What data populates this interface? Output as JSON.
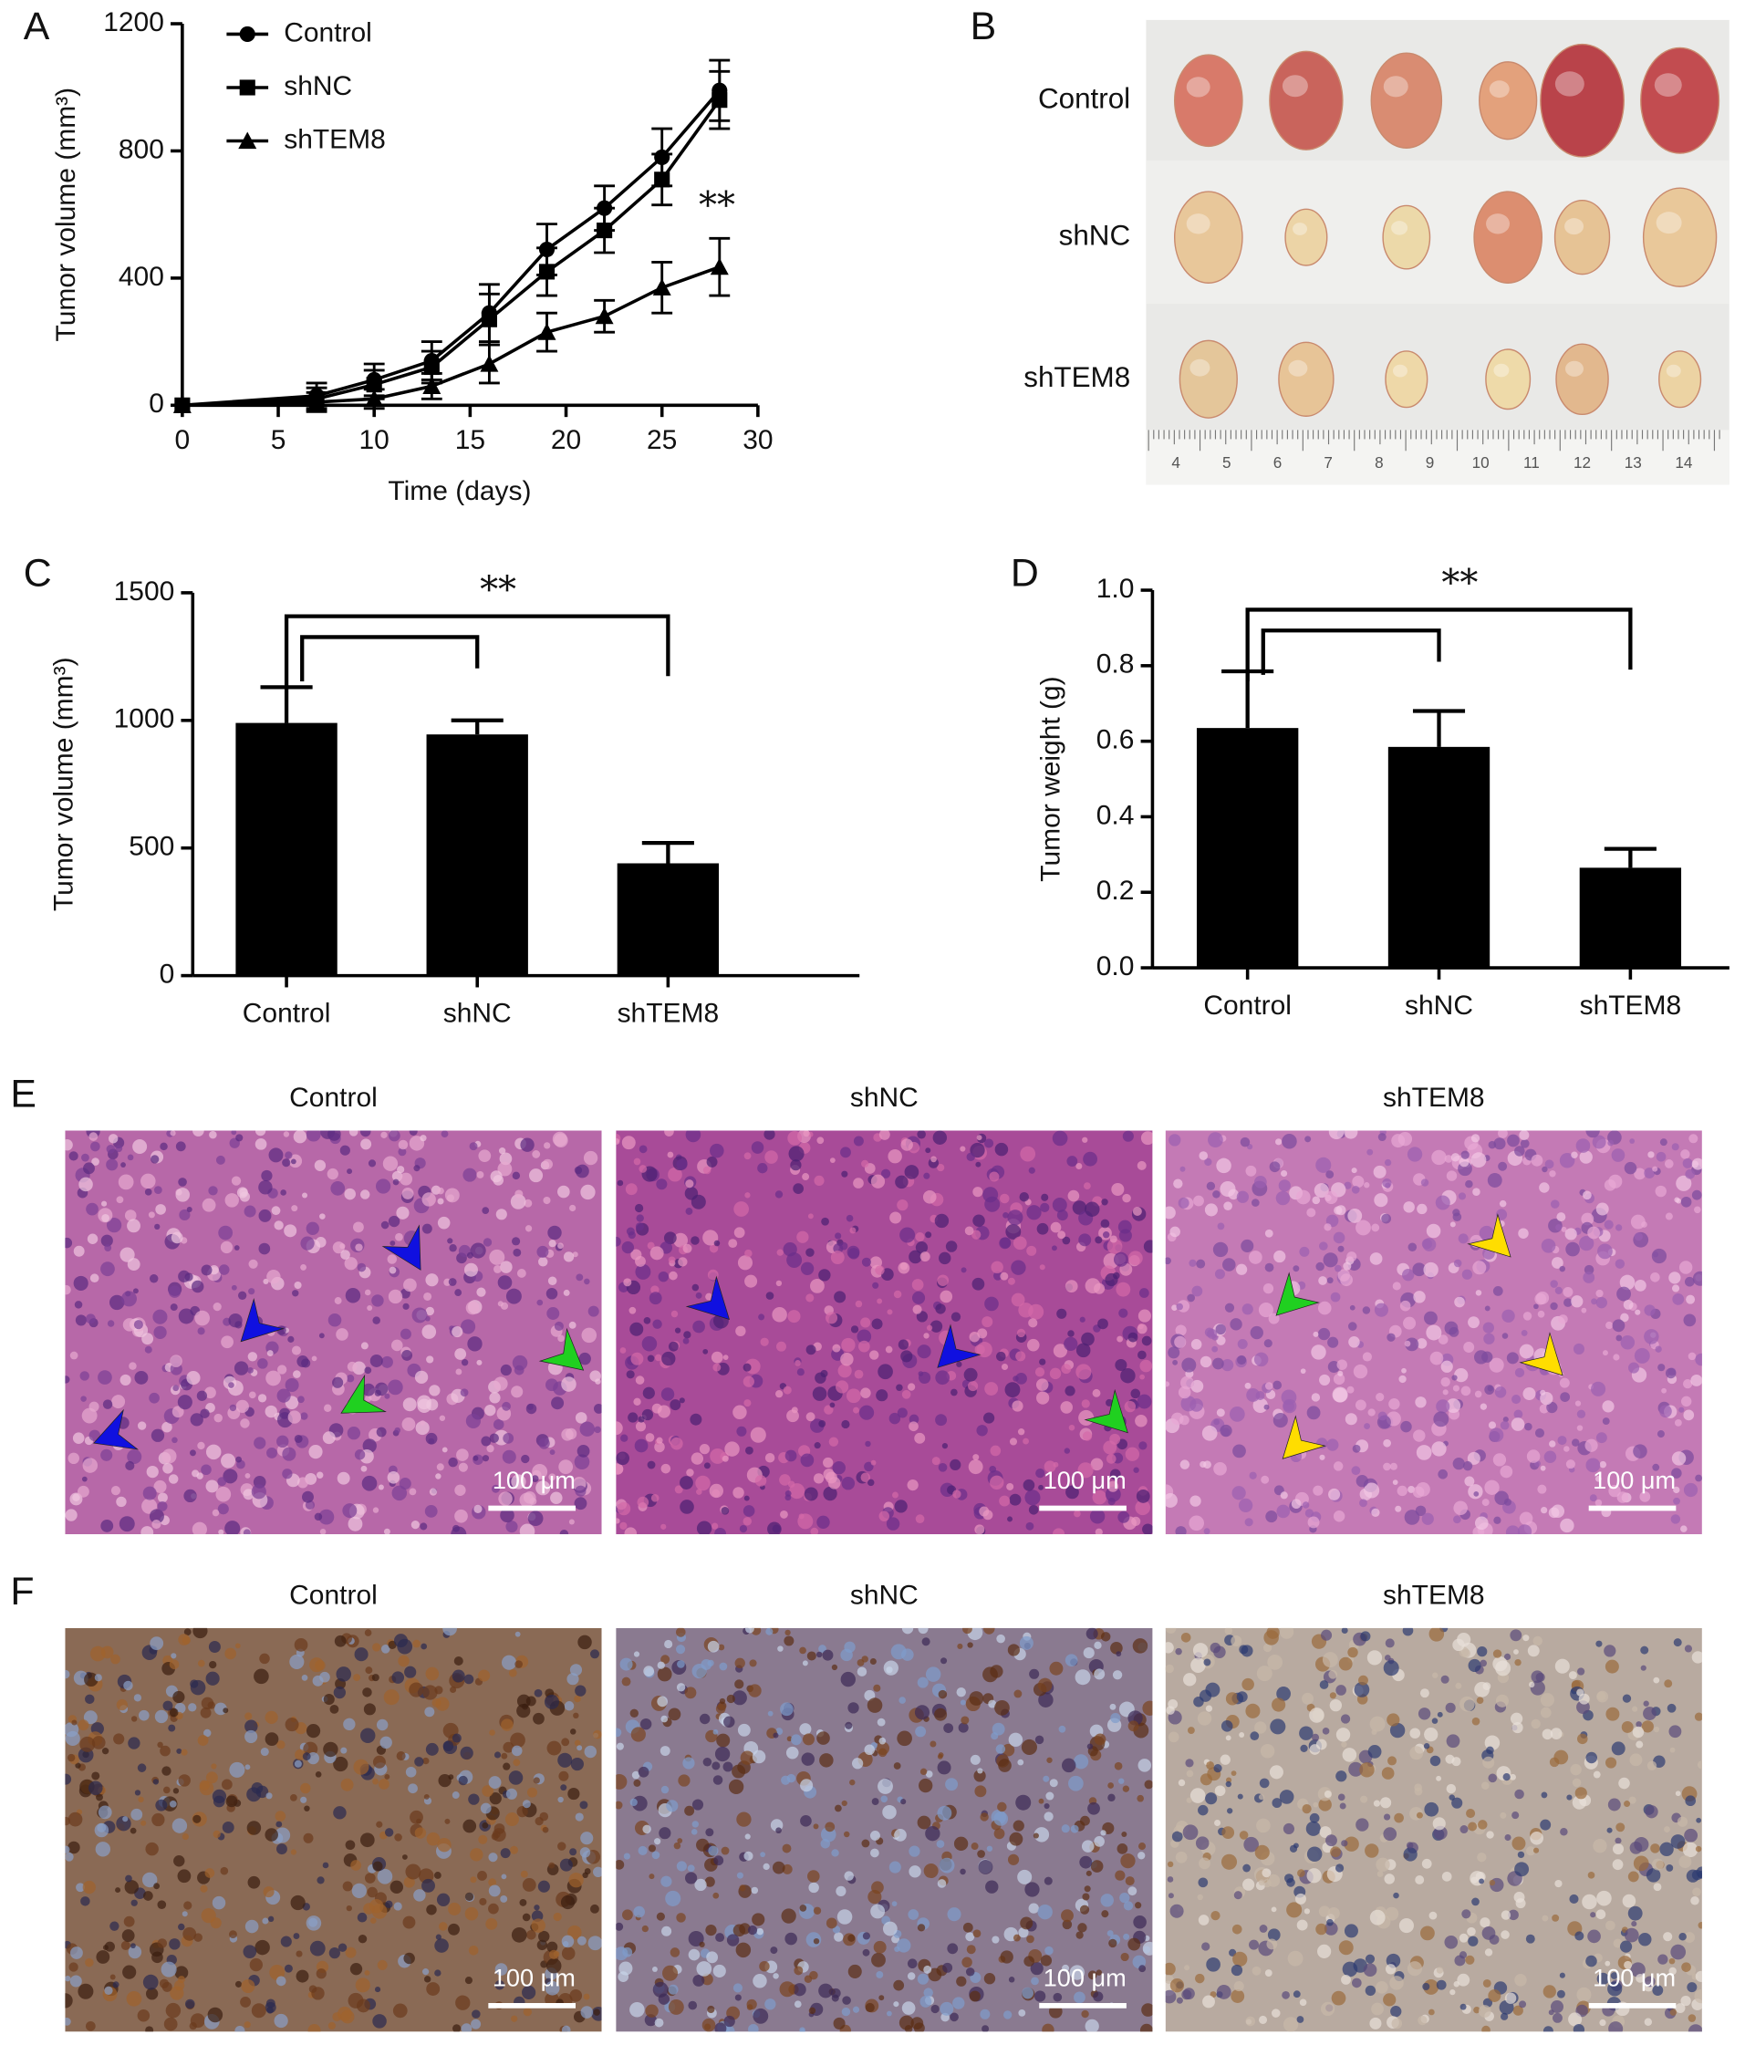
{
  "chart_data": [
    {
      "type": "line",
      "panel_label": "A",
      "xlabel": "Time (days)",
      "ylabel": "Tumor volume (mm³)",
      "x": [
        0,
        7,
        10,
        13,
        16,
        19,
        22,
        25,
        28
      ],
      "series": [
        {
          "name": "Control",
          "marker": "circle",
          "color": "#000000",
          "values": [
            0,
            30,
            80,
            140,
            290,
            490,
            620,
            780,
            990
          ],
          "errors": [
            0,
            40,
            50,
            60,
            90,
            80,
            70,
            90,
            95
          ]
        },
        {
          "name": "shNC",
          "marker": "square",
          "color": "#000000",
          "values": [
            0,
            20,
            65,
            120,
            270,
            420,
            550,
            710,
            960
          ],
          "errors": [
            0,
            35,
            45,
            50,
            80,
            75,
            70,
            80,
            90
          ]
        },
        {
          "name": "shTEM8",
          "marker": "triangle",
          "color": "#000000",
          "values": [
            0,
            10,
            20,
            60,
            130,
            230,
            280,
            370,
            435
          ],
          "errors": [
            0,
            30,
            30,
            40,
            60,
            60,
            50,
            80,
            90
          ]
        }
      ],
      "annotation": "**",
      "xlim": [
        0,
        30
      ],
      "xticks": [
        0,
        5,
        10,
        15,
        20,
        25,
        30
      ],
      "ylim": [
        0,
        1200
      ],
      "yticks": [
        0,
        400,
        800,
        1200
      ]
    },
    {
      "type": "bar",
      "panel_label": "C",
      "ylabel": "Tumor volume (mm³)",
      "categories": [
        "Control",
        "shNC",
        "shTEM8"
      ],
      "values": [
        990,
        945,
        440
      ],
      "errors": [
        140,
        55,
        80
      ],
      "color": "#000000",
      "annotation": "**",
      "ylim": [
        0,
        1500
      ],
      "yticks": [
        0,
        500,
        1000,
        1500
      ]
    },
    {
      "type": "bar",
      "panel_label": "D",
      "ylabel": "Tumor weight (g)",
      "categories": [
        "Control",
        "shNC",
        "shTEM8"
      ],
      "values": [
        0.635,
        0.585,
        0.265
      ],
      "errors": [
        0.15,
        0.095,
        0.05
      ],
      "color": "#000000",
      "annotation": "**",
      "ylim": [
        0,
        1.0
      ],
      "yticks": [
        {
          "value": 0,
          "label": "0.0"
        },
        0.2,
        0.4,
        0.6,
        0.8,
        {
          "value": 1.0,
          "label": "1.0"
        }
      ]
    }
  ],
  "photo_panels": {
    "B": {
      "panel_label": "B",
      "rows": [
        "Control",
        "shNC",
        "shTEM8"
      ],
      "ruler": [
        "4",
        "5",
        "6",
        "7",
        "8",
        "9",
        "10",
        "11",
        "12",
        "13",
        "14"
      ]
    },
    "E": {
      "panel_label": "E",
      "titles": [
        "Control",
        "shNC",
        "shTEM8"
      ],
      "scale_bars": [
        "100 μm",
        "100 μm",
        "100 μm"
      ]
    },
    "F": {
      "panel_label": "F",
      "titles": [
        "Control",
        "shNC",
        "shTEM8"
      ],
      "scale_bars": [
        "100 μm",
        "100 μm",
        "100 μm"
      ]
    }
  }
}
